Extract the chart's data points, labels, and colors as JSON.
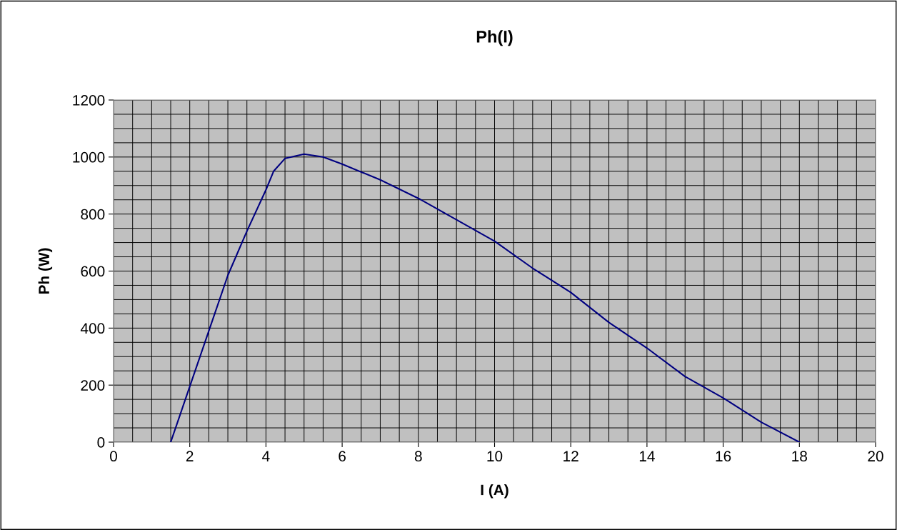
{
  "chart_data": {
    "type": "line",
    "title": "Ph(I)",
    "xlabel": "I (A)",
    "ylabel": "Ph (W)",
    "x": [
      1.5,
      2,
      2.5,
      3,
      3.5,
      4,
      4.2,
      4.5,
      5,
      5.5,
      6,
      7,
      8,
      9,
      10,
      11,
      12,
      13,
      14,
      15,
      16,
      17,
      18
    ],
    "series": [
      {
        "color": "#000080",
        "values": [
          0,
          195,
          390,
          585,
          740,
          885,
          950,
          995,
          1010,
          1000,
          975,
          920,
          855,
          780,
          705,
          610,
          525,
          420,
          330,
          230,
          155,
          70,
          0
        ]
      }
    ],
    "xlim": [
      0,
      20
    ],
    "ylim": [
      0,
      1200
    ],
    "xticks": [
      0,
      2,
      4,
      6,
      8,
      10,
      12,
      14,
      16,
      18,
      20
    ],
    "yticks": [
      0,
      200,
      400,
      600,
      800,
      1000,
      1200
    ],
    "grid": true,
    "legend": false,
    "marker": "none",
    "line_style": "solid"
  }
}
